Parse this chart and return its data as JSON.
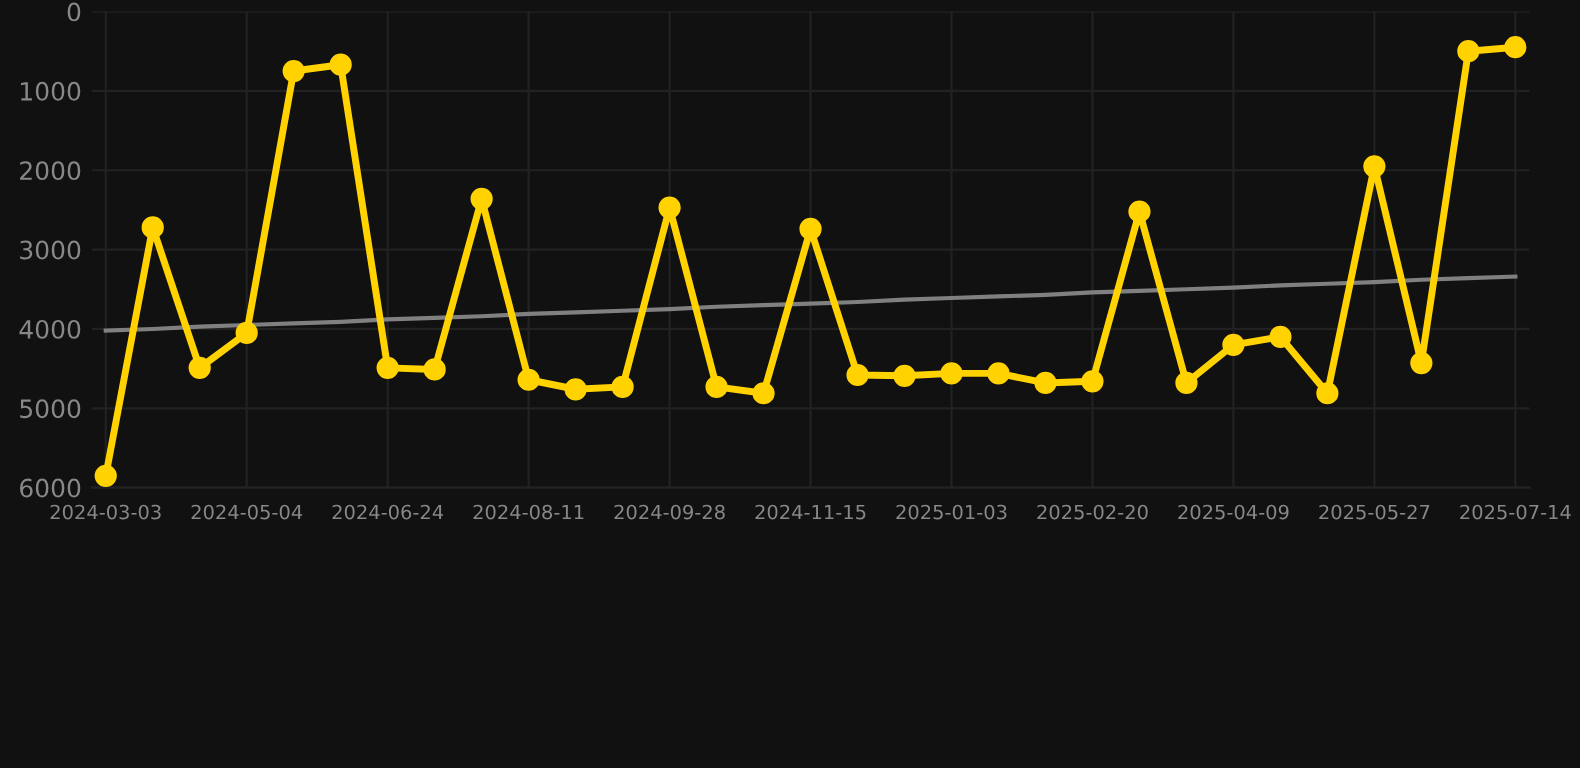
{
  "chart_data": {
    "type": "line",
    "categories": [
      "2024-03-03",
      null,
      null,
      "2024-05-04",
      null,
      null,
      "2024-06-24",
      null,
      null,
      "2024-08-11",
      null,
      null,
      "2024-09-28",
      null,
      null,
      "2024-11-15",
      null,
      null,
      "2025-01-03",
      null,
      null,
      "2025-02-20",
      null,
      null,
      "2025-04-09",
      null,
      null,
      "2025-05-27",
      null,
      null,
      "2025-07-14"
    ],
    "series": [
      {
        "color": "#ffd200",
        "marker": "circle",
        "values": [
          5850,
          2720,
          4490,
          4050,
          750,
          670,
          4490,
          4510,
          2360,
          4640,
          4760,
          4730,
          2470,
          4730,
          4810,
          2740,
          4580,
          4590,
          4560,
          4560,
          4680,
          4660,
          2520,
          4680,
          4200,
          4100,
          4810,
          1950,
          4430,
          500,
          450
        ]
      },
      {
        "color": "#808080",
        "marker": "none",
        "values": [
          4020,
          4000,
          3970,
          3950,
          3930,
          3910,
          3880,
          3860,
          3840,
          3810,
          3790,
          3770,
          3750,
          3720,
          3700,
          3680,
          3660,
          3630,
          3610,
          3590,
          3570,
          3540,
          3520,
          3500,
          3480,
          3450,
          3430,
          3410,
          3380,
          3360,
          3340
        ]
      }
    ],
    "ylim": [
      6000,
      0
    ],
    "yticks": [
      0,
      1000,
      2000,
      3000,
      4000,
      5000,
      6000
    ],
    "grid": true,
    "line_style": "solid"
  }
}
